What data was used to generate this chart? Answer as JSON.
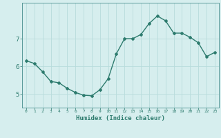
{
  "x": [
    0,
    1,
    2,
    3,
    4,
    5,
    6,
    7,
    8,
    9,
    10,
    11,
    12,
    13,
    14,
    15,
    16,
    17,
    18,
    19,
    20,
    21,
    22,
    23
  ],
  "y": [
    6.2,
    6.1,
    5.8,
    5.45,
    5.4,
    5.2,
    5.05,
    4.95,
    4.93,
    5.15,
    5.55,
    6.45,
    7.0,
    7.0,
    7.15,
    7.55,
    7.82,
    7.65,
    7.2,
    7.2,
    7.05,
    6.85,
    6.35,
    6.5
  ],
  "xlabel": "Humidex (Indice chaleur)",
  "line_color": "#2d7b6e",
  "bg_color": "#d6eeee",
  "grid_color": "#b8dcdc",
  "axis_color": "#5a9a9a",
  "tick_label_color": "#2d7b6e",
  "xlim": [
    -0.5,
    23.5
  ],
  "ylim": [
    4.5,
    8.3
  ],
  "yticks": [
    5,
    6,
    7
  ],
  "xticks": [
    0,
    1,
    2,
    3,
    4,
    5,
    6,
    7,
    8,
    9,
    10,
    11,
    12,
    13,
    14,
    15,
    16,
    17,
    18,
    19,
    20,
    21,
    22,
    23
  ],
  "marker": "D",
  "marker_size": 2.0,
  "line_width": 1.0
}
